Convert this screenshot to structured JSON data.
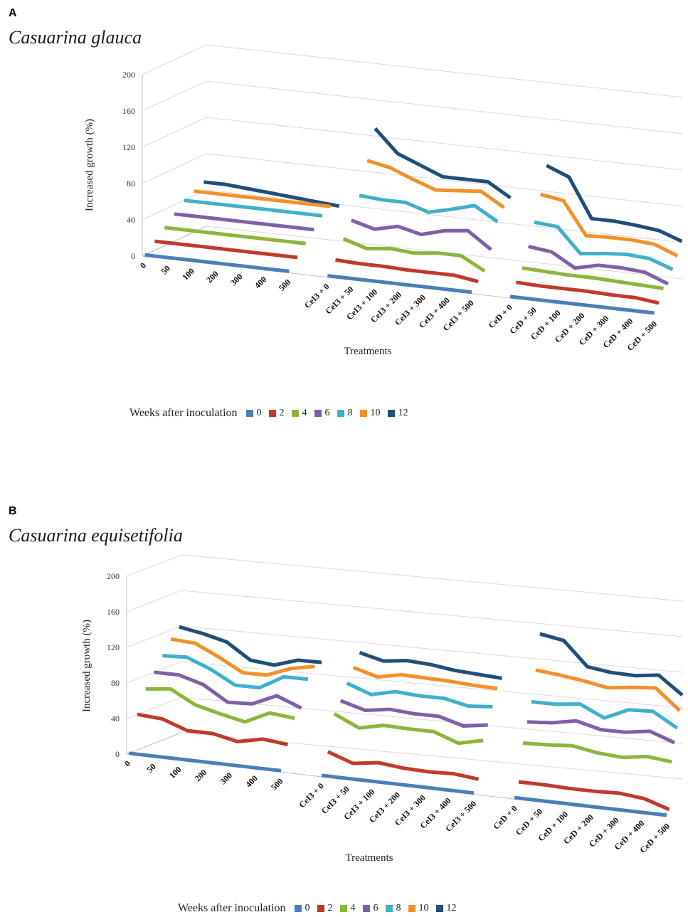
{
  "panels": [
    {
      "letter": "A",
      "species": "Casuarina glauca",
      "xlabel": "Treatments",
      "ylabel": "Increased growth (%)",
      "legend_title": "Weeks after inoculation"
    },
    {
      "letter": "B",
      "species": "Casuarina equisetifolia",
      "xlabel": "Treatments",
      "ylabel": "Increased growth (%)",
      "legend_title": "Weeks after inoculation"
    }
  ],
  "chart_data": [
    {
      "type": "line",
      "title": "Casuarina glauca",
      "xlabel": "Treatments",
      "ylabel": "Increased growth (%)",
      "ylim": [
        0,
        200
      ],
      "yticks": [
        0,
        40,
        80,
        120,
        160,
        200
      ],
      "grid": true,
      "legend_position": "bottom",
      "legend_title": "Weeks after inoculation",
      "groups": [
        [
          "0",
          "50",
          "100",
          "200",
          "300",
          "400",
          "500"
        ],
        [
          "CeI3 + 0",
          "CeI3 + 50",
          "CeI3 + 100",
          "CeI3 + 200",
          "CeI3 + 300",
          "CeI3 + 400",
          "CeI3 + 500"
        ],
        [
          "CeD + 0",
          "CeD + 50",
          "CeD + 100",
          "CeD + 200",
          "CeD + 300",
          "CeD + 400",
          "CeD + 500"
        ]
      ],
      "series": [
        {
          "name": "0",
          "color": "#4a7ebb",
          "values": [
            [
              0,
              0,
              0,
              0,
              0,
              0,
              0
            ],
            [
              0,
              0,
              0,
              0,
              0,
              0,
              0
            ],
            [
              0,
              0,
              0,
              0,
              0,
              0,
              0
            ]
          ]
        },
        {
          "name": "2",
          "color": "#c0392b",
          "values": [
            [
              10,
              10,
              10,
              10,
              10,
              10,
              10
            ],
            [
              12,
              11,
              11,
              10,
              10,
              10,
              6
            ],
            [
              10,
              9,
              9,
              9,
              8,
              8,
              5
            ]
          ]
        },
        {
          "name": "4",
          "color": "#8db53c",
          "values": [
            [
              20,
              20,
              20,
              20,
              20,
              20,
              20
            ],
            [
              30,
              22,
              25,
              23,
              26,
              26,
              12
            ],
            [
              20,
              19,
              18,
              18,
              17,
              16,
              15
            ]
          ]
        },
        {
          "name": "6",
          "color": "#7f5fa8",
          "values": [
            [
              30,
              30,
              30,
              30,
              30,
              30,
              30
            ],
            [
              45,
              38,
              44,
              38,
              45,
              48,
              30
            ],
            [
              38,
              35,
              20,
              26,
              26,
              24,
              14
            ]
          ]
        },
        {
          "name": "8",
          "color": "#3fb0cb",
          "values": [
            [
              40,
              40,
              40,
              40,
              40,
              40,
              40
            ],
            [
              67,
              65,
              65,
              57,
              63,
              70,
              55
            ],
            [
              59,
              57,
              30,
              33,
              35,
              33,
              24
            ]
          ]
        },
        {
          "name": "10",
          "color": "#f3902a",
          "values": [
            [
              45,
              45,
              45,
              45,
              45,
              45,
              45
            ],
            [
              100,
              95,
              85,
              76,
              78,
              80,
              65
            ],
            [
              84,
              80,
              44,
              45,
              45,
              43,
              33
            ]
          ]
        },
        {
          "name": "12",
          "color": "#1f4e79",
          "values": [
            [
              50,
              50,
              48,
              46,
              44,
              42,
              40
            ],
            [
              130,
              105,
              95,
              85,
              85,
              85,
              70
            ],
            [
              110,
              100,
              57,
              57,
              55,
              52,
              43
            ]
          ]
        }
      ]
    },
    {
      "type": "line",
      "title": "Casuarina equisetifolia",
      "xlabel": "Treatments",
      "ylabel": "Increased growth (%)",
      "ylim": [
        0,
        200
      ],
      "yticks": [
        0,
        40,
        80,
        120,
        160,
        200
      ],
      "grid": true,
      "legend_position": "bottom",
      "legend_title": "Weeks after inoculation",
      "groups": [
        [
          "0",
          "50",
          "100",
          "200",
          "300",
          "400",
          "500"
        ],
        [
          "CeI3 + 0",
          "CeI3 + 50",
          "CeI3 + 100",
          "CeI3 + 200",
          "CeI3 + 300",
          "CeI3 + 400",
          "CeI3 + 500"
        ],
        [
          "CeD + 0",
          "CeD + 50",
          "CeD + 100",
          "CeD + 200",
          "CeD + 300",
          "CeD + 400",
          "CeD + 500"
        ]
      ],
      "series": [
        {
          "name": "0",
          "color": "#4a7ebb",
          "values": [
            [
              0,
              0,
              0,
              0,
              0,
              0,
              0
            ],
            [
              0,
              0,
              0,
              0,
              0,
              0,
              0
            ],
            [
              0,
              0,
              0,
              0,
              0,
              0,
              0
            ]
          ]
        },
        {
          "name": "2",
          "color": "#c0392b",
          "values": [
            [
              40,
              38,
              28,
              28,
              22,
              28,
              25
            ],
            [
              22,
              12,
              16,
              13,
              12,
              13,
              10
            ],
            [
              12,
              12,
              11,
              11,
              12,
              9,
              0
            ]
          ]
        },
        {
          "name": "4",
          "color": "#8db53c",
          "values": [
            [
              65,
              68,
              53,
              46,
              40,
              53,
              50
            ],
            [
              60,
              47,
              53,
              52,
              52,
              42,
              48
            ],
            [
              50,
              51,
              53,
              48,
              46,
              50,
              47
            ]
          ]
        },
        {
          "name": "6",
          "color": "#7f5fa8",
          "values": [
            [
              80,
              80,
              72,
              55,
              56,
              68,
              57
            ],
            [
              70,
              62,
              66,
              64,
              64,
              56,
              60
            ],
            [
              68,
              70,
              75,
              68,
              68,
              72,
              62
            ]
          ]
        },
        {
          "name": "8",
          "color": "#3fb0cb",
          "values": [
            [
              95,
              96,
              85,
              70,
              70,
              85,
              85
            ],
            [
              85,
              75,
              81,
              79,
              79,
              73,
              75
            ],
            [
              85,
              85,
              88,
              75,
              87,
              88,
              72
            ]
          ]
        },
        {
          "name": "10",
          "color": "#f3902a",
          "values": [
            [
              110,
              108,
              95,
              80,
              80,
              90,
              95
            ],
            [
              98,
              90,
              95,
              94,
              93,
              91,
              90
            ],
            [
              115,
              112,
              108,
              103,
              106,
              108,
              85
            ]
          ]
        },
        {
          "name": "12",
          "color": "#1f4e79",
          "values": [
            [
              120,
              115,
              108,
              90,
              87,
              95,
              95
            ],
            [
              110,
              103,
              106,
              104,
              100,
              98,
              96
            ],
            [
              150,
              145,
              118,
              114,
              113,
              116,
              96
            ]
          ]
        }
      ]
    }
  ]
}
